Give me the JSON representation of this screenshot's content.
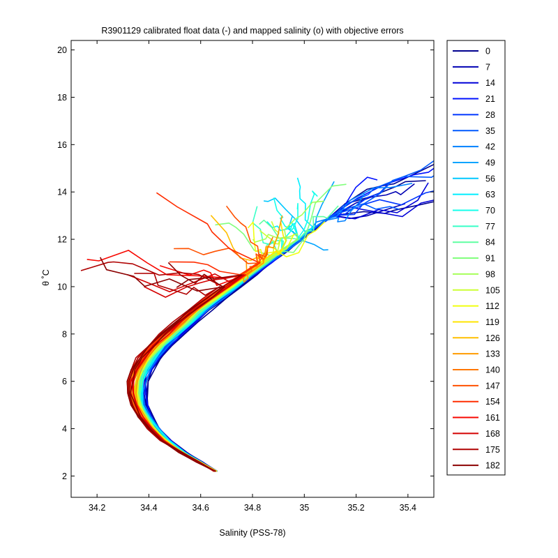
{
  "chart_data": {
    "type": "line",
    "title": "R3901129 calibrated float data (-) and mapped salinity (o) with objective errors",
    "xlabel": "Salinity (PSS-78)",
    "ylabel": "θ ˚C",
    "xlim": [
      34.1,
      35.5
    ],
    "ylim": [
      1.1,
      20.4
    ],
    "xticks": [
      34.2,
      34.4,
      34.6,
      34.8,
      35,
      35.2,
      35.4
    ],
    "xtick_labels": [
      "34.2",
      "34.4",
      "34.6",
      "34.8",
      "35",
      "35.2",
      "35.4"
    ],
    "yticks": [
      2,
      4,
      6,
      8,
      10,
      12,
      14,
      16,
      18,
      20
    ],
    "ytick_labels": [
      "2",
      "4",
      "6",
      "8",
      "10",
      "12",
      "14",
      "16",
      "18",
      "20"
    ],
    "grid": false,
    "legend_position": "outside-right",
    "legend": [
      {
        "label": "0",
        "color": "#00008f"
      },
      {
        "label": "7",
        "color": "#0000b3"
      },
      {
        "label": "14",
        "color": "#0000d8"
      },
      {
        "label": "21",
        "color": "#0010ff"
      },
      {
        "label": "28",
        "color": "#0036ff"
      },
      {
        "label": "35",
        "color": "#005aff"
      },
      {
        "label": "42",
        "color": "#0080ff"
      },
      {
        "label": "49",
        "color": "#00a4ff"
      },
      {
        "label": "56",
        "color": "#00c8ff"
      },
      {
        "label": "63",
        "color": "#00eeff"
      },
      {
        "label": "70",
        "color": "#14ffeb"
      },
      {
        "label": "77",
        "color": "#38ffc7"
      },
      {
        "label": "84",
        "color": "#5effa1"
      },
      {
        "label": "91",
        "color": "#82ff7d"
      },
      {
        "label": "98",
        "color": "#a6ff59"
      },
      {
        "label": "105",
        "color": "#ccff33"
      },
      {
        "label": "112",
        "color": "#f0ff0f"
      },
      {
        "label": "119",
        "color": "#ffe500"
      },
      {
        "label": "126",
        "color": "#ffbf00"
      },
      {
        "label": "133",
        "color": "#ff9b00"
      },
      {
        "label": "140",
        "color": "#ff7700"
      },
      {
        "label": "147",
        "color": "#ff5100"
      },
      {
        "label": "154",
        "color": "#ff2d00"
      },
      {
        "label": "161",
        "color": "#f70700"
      },
      {
        "label": "168",
        "color": "#d40000"
      },
      {
        "label": "175",
        "color": "#af0000"
      },
      {
        "label": "182",
        "color": "#8b0000"
      }
    ]
  }
}
